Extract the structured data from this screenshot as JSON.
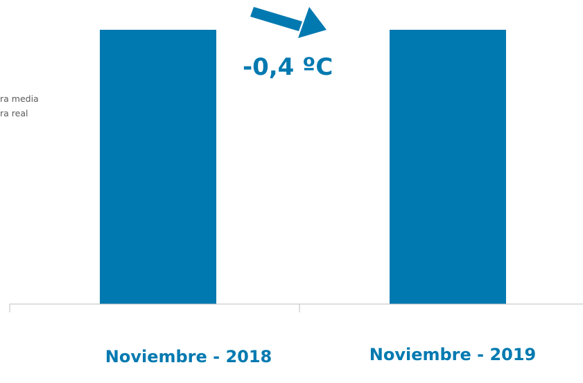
{
  "chart_data": {
    "type": "bar",
    "categories": [
      "Noviembre - 2018",
      "Noviembre - 2019"
    ],
    "series": [
      {
        "name": "",
        "values": [
          1,
          1
        ]
      }
    ],
    "title": "",
    "xlabel": "",
    "ylabel": "",
    "ylim": [
      0,
      1
    ],
    "grid": false,
    "legend_entries": [
      "ra media",
      "ra real"
    ],
    "legend_position": "left",
    "annotation": "-0,4 ºC",
    "bar_color": "#0079B0",
    "axis_color": "#BFBFBF"
  }
}
